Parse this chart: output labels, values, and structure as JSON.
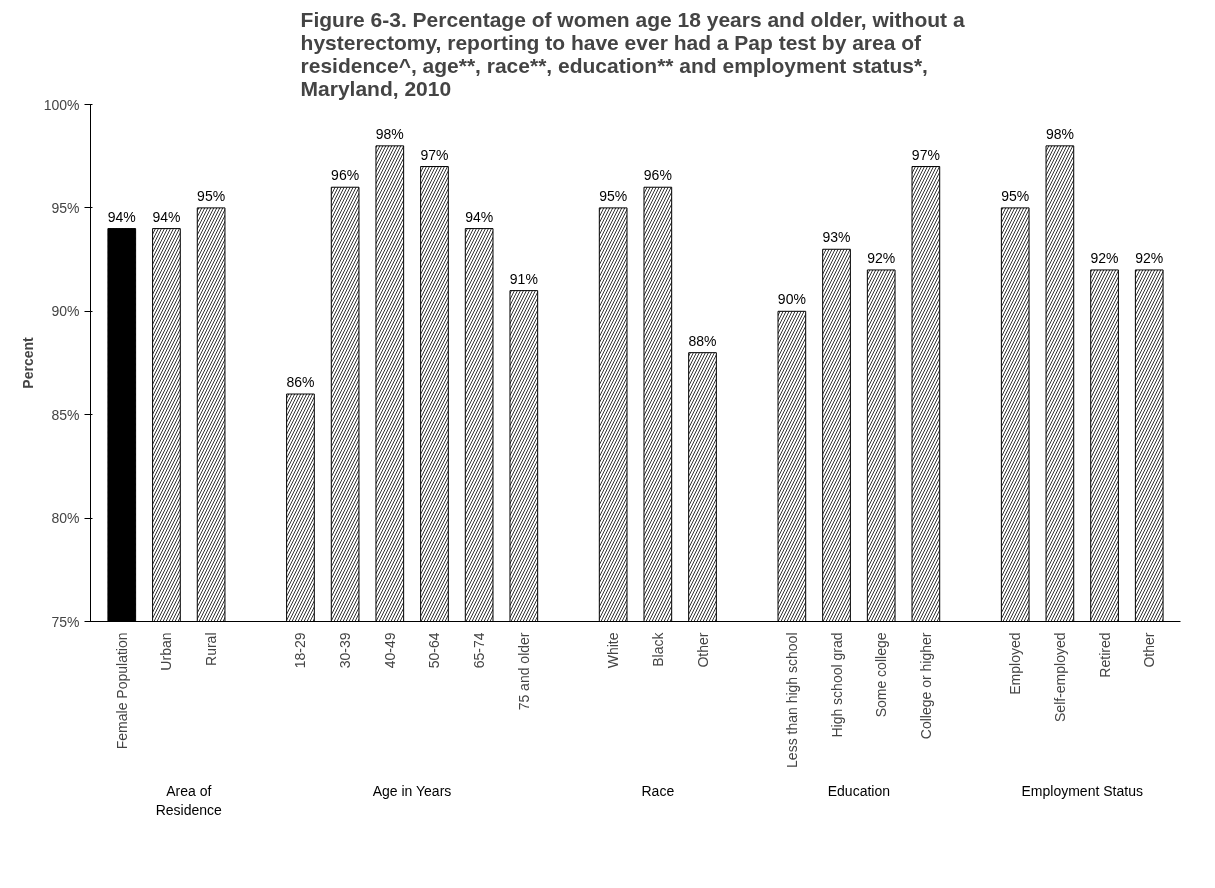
{
  "chart_data": {
    "type": "bar",
    "title": "Figure 6-3.  Percentage of women age 18 years and older, without a hysterectomy, reporting to have ever had a Pap test by area of residence^, age**, race**, education** and employment status*, Maryland, 2010",
    "ylabel": "Percent",
    "categories": [
      "Female Population",
      "Urban",
      "Rural",
      null,
      "18-29",
      "30-39",
      "40-49",
      "50-64",
      "65-74",
      "75 and older",
      null,
      "White",
      "Black",
      "Other",
      null,
      "Less than high school",
      "High school grad",
      "Some college",
      "College or higher",
      null,
      "Employed",
      "Self-employed",
      "Retired",
      "Other"
    ],
    "values": [
      94,
      94,
      95,
      null,
      86,
      96,
      98,
      97,
      94,
      91,
      null,
      95,
      96,
      88,
      null,
      90,
      93,
      92,
      97,
      null,
      95,
      98,
      92,
      92
    ],
    "colors": [
      "#000000",
      "#ffffff",
      "#ffffff",
      null,
      "#ffffff",
      "#ffffff",
      "#ffffff",
      "#ffffff",
      "#ffffff",
      "#ffffff",
      null,
      "#ffffff",
      "#ffffff",
      "#ffffff",
      null,
      "#ffffff",
      "#ffffff",
      "#ffffff",
      "#ffffff",
      null,
      "#ffffff",
      "#ffffff",
      "#ffffff",
      "#ffffff"
    ],
    "value_labels": [
      "94%",
      "94%",
      "95%",
      null,
      "86%",
      "96%",
      "98%",
      "97%",
      "94%",
      "91%",
      null,
      "95%",
      "96%",
      "88%",
      null,
      "90%",
      "93%",
      "92%",
      "97%",
      null,
      "95%",
      "98%",
      "92%",
      "92%"
    ],
    "ylim": [
      75,
      100
    ],
    "yticks": [
      {
        "value": 75,
        "label": "75%"
      },
      {
        "value": 80,
        "label": "80%"
      },
      {
        "value": 85,
        "label": "85%"
      },
      {
        "value": 90,
        "label": "90%"
      },
      {
        "value": 95,
        "label": "95%"
      },
      {
        "value": 100,
        "label": "100%"
      }
    ],
    "annotations": [
      "Area of Residence",
      "Age in Years",
      "Race",
      "Education",
      "Employment Status"
    ]
  }
}
